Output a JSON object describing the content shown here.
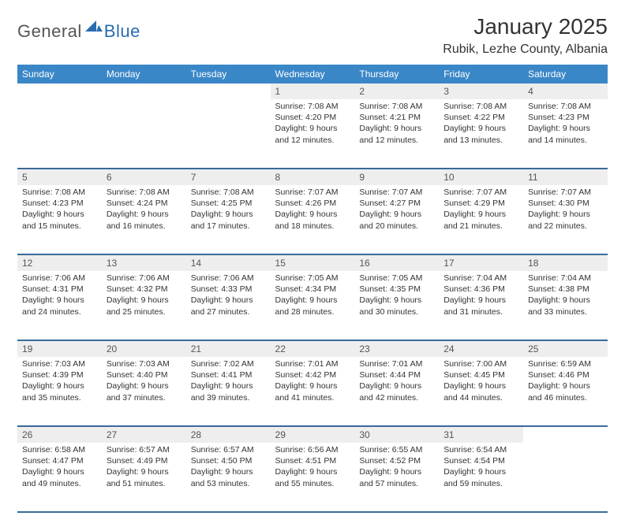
{
  "brand": {
    "general": "General",
    "blue": "Blue"
  },
  "title": "January 2025",
  "location": "Rubik, Lezhe County, Albania",
  "colors": {
    "header_bg": "#3a87c8",
    "header_text": "#ffffff",
    "row_divider": "#3a6a9a",
    "daynum_bg": "#eeeeee",
    "text": "#333333",
    "logo_gray": "#555555",
    "logo_blue": "#2a6bb0"
  },
  "day_headers": [
    "Sunday",
    "Monday",
    "Tuesday",
    "Wednesday",
    "Thursday",
    "Friday",
    "Saturday"
  ],
  "weeks": [
    [
      null,
      null,
      null,
      {
        "n": "1",
        "sr": "7:08 AM",
        "ss": "4:20 PM",
        "dl": "9 hours and 12 minutes."
      },
      {
        "n": "2",
        "sr": "7:08 AM",
        "ss": "4:21 PM",
        "dl": "9 hours and 12 minutes."
      },
      {
        "n": "3",
        "sr": "7:08 AM",
        "ss": "4:22 PM",
        "dl": "9 hours and 13 minutes."
      },
      {
        "n": "4",
        "sr": "7:08 AM",
        "ss": "4:23 PM",
        "dl": "9 hours and 14 minutes."
      }
    ],
    [
      {
        "n": "5",
        "sr": "7:08 AM",
        "ss": "4:23 PM",
        "dl": "9 hours and 15 minutes."
      },
      {
        "n": "6",
        "sr": "7:08 AM",
        "ss": "4:24 PM",
        "dl": "9 hours and 16 minutes."
      },
      {
        "n": "7",
        "sr": "7:08 AM",
        "ss": "4:25 PM",
        "dl": "9 hours and 17 minutes."
      },
      {
        "n": "8",
        "sr": "7:07 AM",
        "ss": "4:26 PM",
        "dl": "9 hours and 18 minutes."
      },
      {
        "n": "9",
        "sr": "7:07 AM",
        "ss": "4:27 PM",
        "dl": "9 hours and 20 minutes."
      },
      {
        "n": "10",
        "sr": "7:07 AM",
        "ss": "4:29 PM",
        "dl": "9 hours and 21 minutes."
      },
      {
        "n": "11",
        "sr": "7:07 AM",
        "ss": "4:30 PM",
        "dl": "9 hours and 22 minutes."
      }
    ],
    [
      {
        "n": "12",
        "sr": "7:06 AM",
        "ss": "4:31 PM",
        "dl": "9 hours and 24 minutes."
      },
      {
        "n": "13",
        "sr": "7:06 AM",
        "ss": "4:32 PM",
        "dl": "9 hours and 25 minutes."
      },
      {
        "n": "14",
        "sr": "7:06 AM",
        "ss": "4:33 PM",
        "dl": "9 hours and 27 minutes."
      },
      {
        "n": "15",
        "sr": "7:05 AM",
        "ss": "4:34 PM",
        "dl": "9 hours and 28 minutes."
      },
      {
        "n": "16",
        "sr": "7:05 AM",
        "ss": "4:35 PM",
        "dl": "9 hours and 30 minutes."
      },
      {
        "n": "17",
        "sr": "7:04 AM",
        "ss": "4:36 PM",
        "dl": "9 hours and 31 minutes."
      },
      {
        "n": "18",
        "sr": "7:04 AM",
        "ss": "4:38 PM",
        "dl": "9 hours and 33 minutes."
      }
    ],
    [
      {
        "n": "19",
        "sr": "7:03 AM",
        "ss": "4:39 PM",
        "dl": "9 hours and 35 minutes."
      },
      {
        "n": "20",
        "sr": "7:03 AM",
        "ss": "4:40 PM",
        "dl": "9 hours and 37 minutes."
      },
      {
        "n": "21",
        "sr": "7:02 AM",
        "ss": "4:41 PM",
        "dl": "9 hours and 39 minutes."
      },
      {
        "n": "22",
        "sr": "7:01 AM",
        "ss": "4:42 PM",
        "dl": "9 hours and 41 minutes."
      },
      {
        "n": "23",
        "sr": "7:01 AM",
        "ss": "4:44 PM",
        "dl": "9 hours and 42 minutes."
      },
      {
        "n": "24",
        "sr": "7:00 AM",
        "ss": "4:45 PM",
        "dl": "9 hours and 44 minutes."
      },
      {
        "n": "25",
        "sr": "6:59 AM",
        "ss": "4:46 PM",
        "dl": "9 hours and 46 minutes."
      }
    ],
    [
      {
        "n": "26",
        "sr": "6:58 AM",
        "ss": "4:47 PM",
        "dl": "9 hours and 49 minutes."
      },
      {
        "n": "27",
        "sr": "6:57 AM",
        "ss": "4:49 PM",
        "dl": "9 hours and 51 minutes."
      },
      {
        "n": "28",
        "sr": "6:57 AM",
        "ss": "4:50 PM",
        "dl": "9 hours and 53 minutes."
      },
      {
        "n": "29",
        "sr": "6:56 AM",
        "ss": "4:51 PM",
        "dl": "9 hours and 55 minutes."
      },
      {
        "n": "30",
        "sr": "6:55 AM",
        "ss": "4:52 PM",
        "dl": "9 hours and 57 minutes."
      },
      {
        "n": "31",
        "sr": "6:54 AM",
        "ss": "4:54 PM",
        "dl": "9 hours and 59 minutes."
      },
      null
    ]
  ],
  "labels": {
    "sunrise": "Sunrise:",
    "sunset": "Sunset:",
    "daylight": "Daylight:"
  }
}
